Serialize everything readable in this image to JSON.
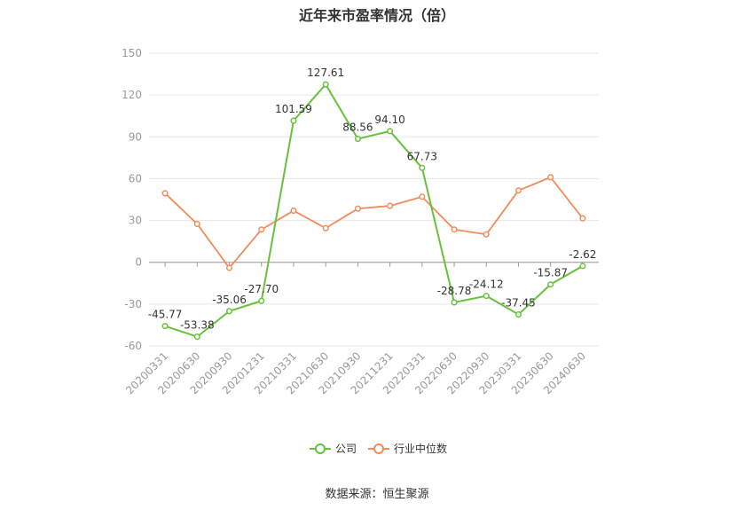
{
  "chart_data": {
    "type": "line",
    "title": "近年来市盈率情况（倍）",
    "categories": [
      "20200331",
      "20200630",
      "20200930",
      "20201231",
      "20210331",
      "20210630",
      "20210930",
      "20211231",
      "20220331",
      "20220630",
      "20220930",
      "20230331",
      "20230630",
      "20240630"
    ],
    "ylim": [
      -60,
      150
    ],
    "yticks": [
      -60,
      -30,
      0,
      30,
      60,
      90,
      120,
      150
    ],
    "grid": true,
    "legend_position": "bottom",
    "series": [
      {
        "name": "公司",
        "color": "#67c23a",
        "values": [
          -45.77,
          -53.38,
          -35.06,
          -27.7,
          101.59,
          127.61,
          88.56,
          94.1,
          67.73,
          -28.78,
          -24.12,
          -37.45,
          -15.87,
          -2.62
        ],
        "labels": [
          "-45.77",
          "-53.38",
          "-35.06",
          "-27.70",
          "101.59",
          "127.61",
          "88.56",
          "94.10",
          "67.73",
          "-28.78",
          "-24.12",
          "-37.45",
          "-15.87",
          "-2.62"
        ]
      },
      {
        "name": "行业中位数",
        "color": "#f08c5a",
        "values": [
          49.5,
          27.5,
          -4,
          23.5,
          37,
          24.5,
          38.5,
          40.5,
          47,
          23.5,
          20,
          51.5,
          61,
          31.5
        ]
      }
    ]
  },
  "source_text": "数据来源：恒生聚源"
}
